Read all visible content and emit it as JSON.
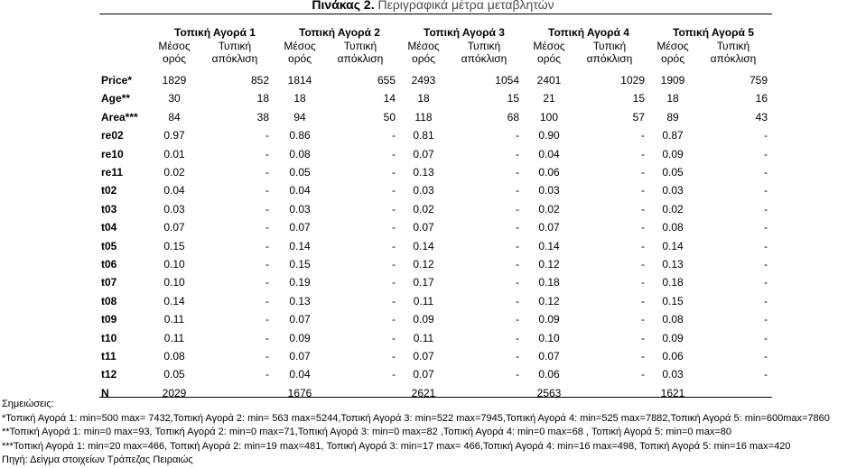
{
  "title": {
    "label": "Πινάκας 2.",
    "text": "Περιγραφικά μέτρα μεταβλητών"
  },
  "markets": [
    {
      "name": "Τοπική Αγορά 1",
      "mean": "Μέσος\nορός",
      "sd": "Τυπική\nαπόκλιση"
    },
    {
      "name": "Τοπική Αγορά 2",
      "mean": "Μέσος\nορός",
      "sd": "Τυπική\nαπόκλιση"
    },
    {
      "name": "Τοπική Αγορά 3",
      "mean": "Μέσος\nορός",
      "sd": "Τυπική\nαπόκλιση"
    },
    {
      "name": "Τοπική Αγορά 4",
      "mean": "Μέσος\nορός",
      "sd": "Τυπική\nαπόκλιση"
    },
    {
      "name": "Τοπική Αγορά 5",
      "mean": "Μέσος\nορός",
      "sd": "Τυπική\nαπόκλιση"
    }
  ],
  "rows": [
    {
      "label": "Price*",
      "values": [
        "1829",
        "852",
        "1814",
        "655",
        "2493",
        "1054",
        "2401",
        "1029",
        "1909",
        "759"
      ]
    },
    {
      "label": "Age**",
      "values": [
        "30",
        "18",
        "18",
        "14",
        "18",
        "15",
        "21",
        "15",
        "18",
        "16"
      ]
    },
    {
      "label": "Area***",
      "values": [
        "84",
        "38",
        "94",
        "50",
        "118",
        "68",
        "100",
        "57",
        "89",
        "43"
      ]
    },
    {
      "label": "re02",
      "values": [
        "0.97",
        "-",
        "0.86",
        "-",
        "0.81",
        "-",
        "0.90",
        "-",
        "0.87",
        "-"
      ]
    },
    {
      "label": "re10",
      "values": [
        "0.01",
        "-",
        "0.08",
        "-",
        "0.07",
        "-",
        "0.04",
        "-",
        "0.09",
        "-"
      ]
    },
    {
      "label": "re11",
      "values": [
        "0.02",
        "-",
        "0.05",
        "-",
        "0.13",
        "-",
        "0.06",
        "-",
        "0.05",
        "-"
      ]
    },
    {
      "label": "t02",
      "values": [
        "0.04",
        "-",
        "0.04",
        "-",
        "0.03",
        "-",
        "0.03",
        "-",
        "0.03",
        "-"
      ]
    },
    {
      "label": "t03",
      "values": [
        "0.03",
        "-",
        "0.03",
        "-",
        "0.02",
        "-",
        "0.02",
        "-",
        "0.02",
        "-"
      ]
    },
    {
      "label": "t04",
      "values": [
        "0.07",
        "-",
        "0.07",
        "-",
        "0.07",
        "-",
        "0.07",
        "-",
        "0.08",
        "-"
      ]
    },
    {
      "label": "t05",
      "values": [
        "0.15",
        "-",
        "0.14",
        "-",
        "0.14",
        "-",
        "0.14",
        "-",
        "0.14",
        "-"
      ]
    },
    {
      "label": "t06",
      "values": [
        "0.10",
        "-",
        "0.15",
        "-",
        "0.12",
        "-",
        "0.12",
        "-",
        "0.13",
        "-"
      ]
    },
    {
      "label": "t07",
      "values": [
        "0.10",
        "-",
        "0.19",
        "-",
        "0.17",
        "-",
        "0.18",
        "-",
        "0.18",
        "-"
      ]
    },
    {
      "label": "t08",
      "values": [
        "0.14",
        "-",
        "0.13",
        "-",
        "0.11",
        "-",
        "0.12",
        "-",
        "0.15",
        "-"
      ]
    },
    {
      "label": "t09",
      "values": [
        "0.11",
        "-",
        "0.07",
        "-",
        "0.09",
        "-",
        "0.09",
        "-",
        "0.08",
        "-"
      ]
    },
    {
      "label": "t10",
      "values": [
        "0.11",
        "-",
        "0.09",
        "-",
        "0.11",
        "-",
        "0.10",
        "-",
        "0.09",
        "-"
      ]
    },
    {
      "label": "t11",
      "values": [
        "0.08",
        "-",
        "0.07",
        "-",
        "0.07",
        "-",
        "0.07",
        "-",
        "0.06",
        "-"
      ]
    },
    {
      "label": "t12",
      "values": [
        "0.05",
        "-",
        "0.04",
        "-",
        "0.07",
        "-",
        "0.06",
        "-",
        "0.03",
        "-"
      ]
    },
    {
      "label": "N",
      "values": [
        "2029",
        "",
        "1676",
        "",
        "2621",
        "",
        "2563",
        "",
        "1621",
        ""
      ]
    }
  ],
  "notes": {
    "heading": "Σημειώσεις:",
    "price": "*Τοπική Αγορά 1: min=500 max= 7432,Τοπική Αγορά 2: min= 563 max=5244,Τοπική Αγορά 3: min=522 max=7945,Τοπική Αγορά 4: min=525 max=7882,Τοπική Αγορά 5: min=600max=7860",
    "age": "**Τοπική Αγορά 1: min=0 max=93, Τοπική Αγορά 2: min=0 max=71,Τοπική Αγορά 3: min=0 max=82 ,Τοπική Αγορά 4: min=0 max=68 , Τοπική Αγορά 5: min=0 max=80",
    "area": "***Τοπική Αγορά 1: min=20 max=466, Τοπική Αγορά 2: min=19 max=481, Τοπική Αγορά 3: min=17 max= 466,Τοπική Αγορά 4: min=16 max=498, Τοπική Αγορά 5: min=16 max=420",
    "source": "Πηγή: Δείγμα στοιχείων Τράπεζας Πειραιώς"
  }
}
